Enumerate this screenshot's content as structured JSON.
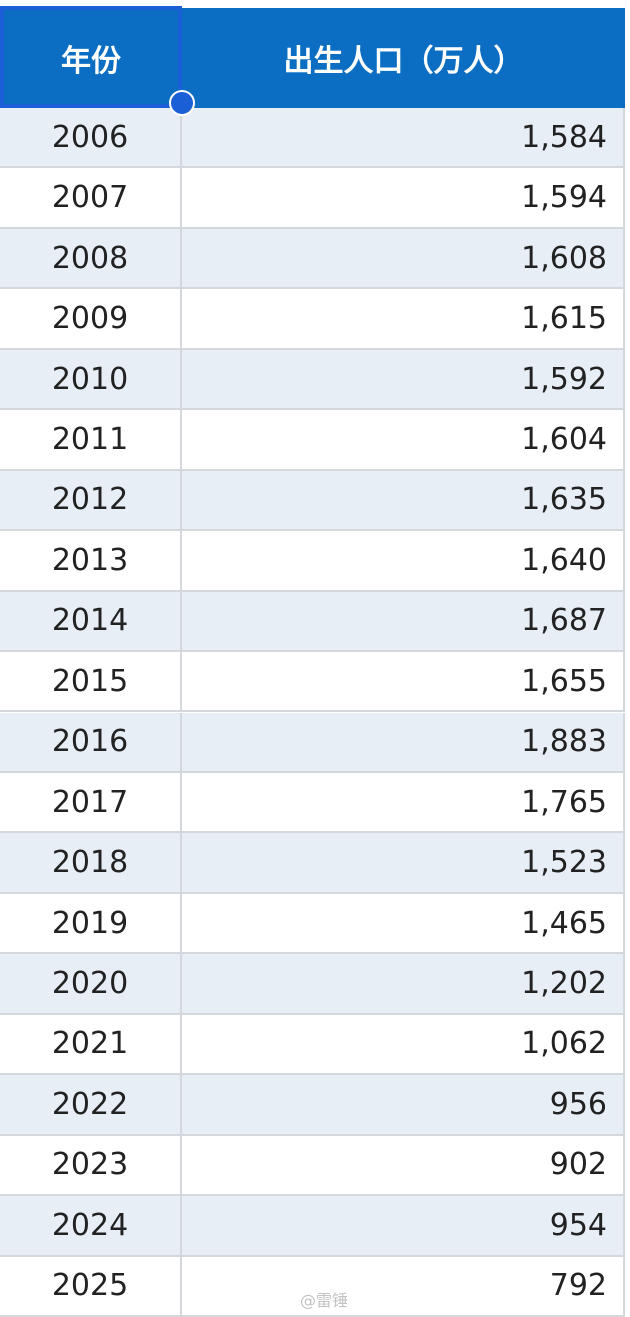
{
  "table": {
    "header": [
      "年份",
      "出生人口（万人）"
    ],
    "rows": [
      [
        "2006",
        "1,584"
      ],
      [
        "2007",
        "1,594"
      ],
      [
        "2008",
        "1,608"
      ],
      [
        "2009",
        "1,615"
      ],
      [
        "2010",
        "1,592"
      ],
      [
        "2011",
        "1,604"
      ],
      [
        "2012",
        "1,635"
      ],
      [
        "2013",
        "1,640"
      ],
      [
        "2014",
        "1,687"
      ],
      [
        "2015",
        "1,655"
      ],
      [
        "2016",
        "1,883"
      ],
      [
        "2017",
        "1,765"
      ],
      [
        "2018",
        "1,523"
      ],
      [
        "2019",
        "1,465"
      ],
      [
        "2020",
        "1,202"
      ],
      [
        "2021",
        "1,062"
      ],
      [
        "2022",
        "956"
      ],
      [
        "2023",
        "902"
      ],
      [
        "2024",
        "954"
      ],
      [
        "2025",
        "792"
      ]
    ]
  },
  "watermark": "@雷锤"
}
